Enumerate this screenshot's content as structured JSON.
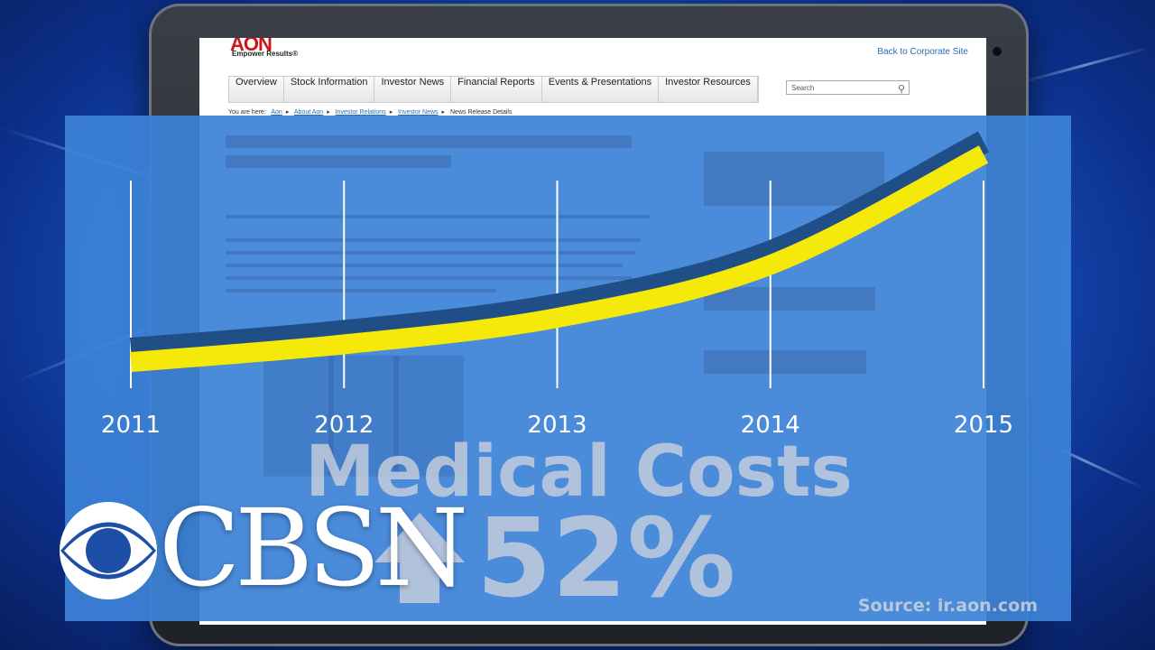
{
  "website": {
    "logo_text": "AON",
    "tagline": "Empower Results®",
    "back_link": "Back to Corporate Site",
    "nav": [
      "Overview",
      "Stock Information",
      "Investor News",
      "Financial Reports",
      "Events & Presentations",
      "Investor Resources"
    ],
    "search_placeholder": "Search",
    "breadcrumb_prefix": "You are here:",
    "breadcrumb": [
      "Aon",
      "About Aon",
      "Investor Relations",
      "Investor News",
      "News Release Details"
    ]
  },
  "graphic": {
    "headline": "Medical Costs",
    "change_value": "52%",
    "source": "Source: ir.aon.com",
    "colors": {
      "overlay": "#3c82d7",
      "curve_main": "#f5e90a",
      "curve_shadow": "#1f4f86",
      "text_overlay": "#cdd2dc"
    }
  },
  "logo": {
    "network": "CBSN",
    "icon": "cbs-eye-icon"
  },
  "chart_data": {
    "type": "line",
    "x": [
      2011,
      2012,
      2013,
      2014,
      2015
    ],
    "xlabels": [
      "2011",
      "2012",
      "2013",
      "2014",
      "2015"
    ],
    "series": [
      {
        "values": [
          1.0,
          1.08,
          1.2,
          1.44,
          1.94
        ]
      }
    ],
    "y_axis_shown": false,
    "grid": "vertical"
  }
}
